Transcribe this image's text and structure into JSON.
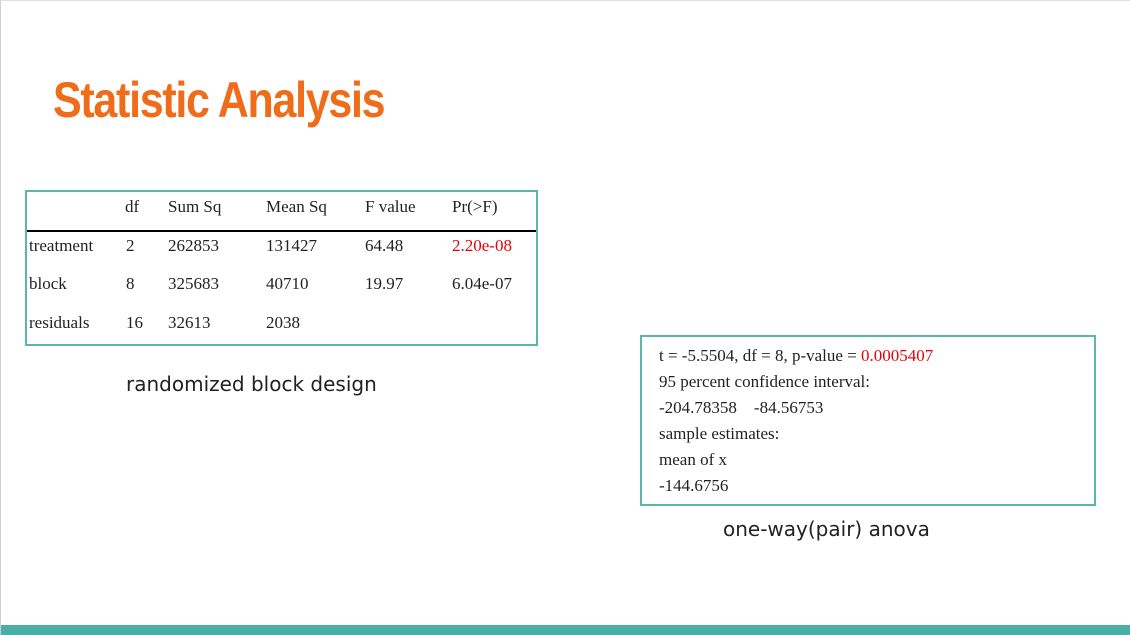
{
  "slide": {
    "title": "Statistic Analysis",
    "accent_color": "#ef6c1a",
    "border_color": "#5bb5ad",
    "footer_color": "#4aaea4"
  },
  "anova_table": {
    "headers": [
      "df",
      "Sum Sq",
      "Mean Sq",
      "F value",
      "Pr(>F)"
    ],
    "rows": [
      {
        "label": "treatment",
        "df": "2",
        "sum_sq": "262853",
        "mean_sq": "131427",
        "f_value": "64.48",
        "p": "2.20e-08"
      },
      {
        "label": "block",
        "df": "8",
        "sum_sq": "325683",
        "mean_sq": "40710",
        "f_value": "19.97",
        "p": "6.04e-07"
      },
      {
        "label": "residuals",
        "df": "16",
        "sum_sq": "32613",
        "mean_sq": "2038",
        "f_value": "",
        "p": ""
      }
    ],
    "caption": "randomized block design"
  },
  "ttest": {
    "line1_prefix": "t = -5.5504, df = 8, p-value = ",
    "line1_pvalue": "0.0005407",
    "line2": "95 percent confidence interval:",
    "line3": "-204.78358    -84.56753",
    "line4": "sample estimates:",
    "line5": "mean of x",
    "line6": "-144.6756",
    "caption": "one-way(pair) anova"
  }
}
